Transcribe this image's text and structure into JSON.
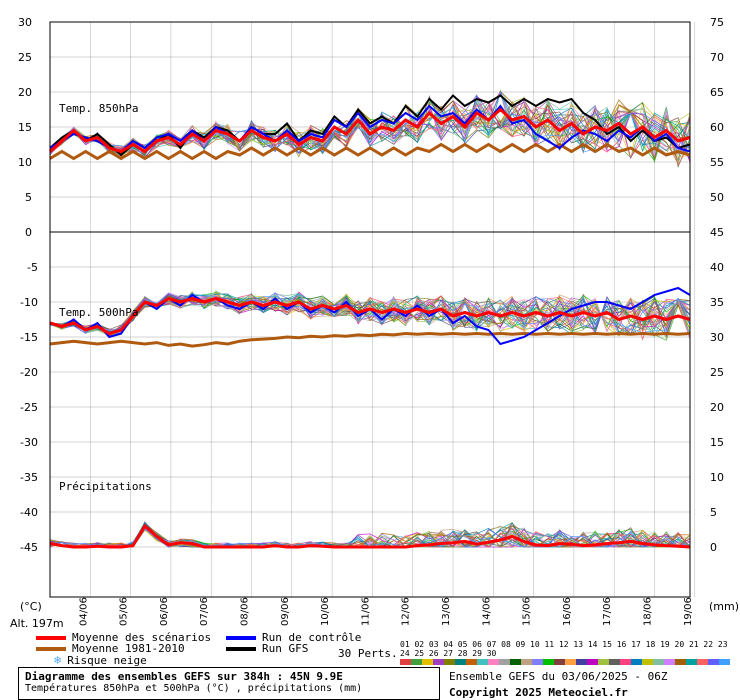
{
  "chart_data": {
    "type": "line",
    "left_axis_unit": "(°C)",
    "right_axis_unit": "(mm)",
    "altitude": "Alt. 197m",
    "left_ticks_top": [
      "30",
      "25",
      "20",
      "15",
      "10",
      "5",
      "0"
    ],
    "left_ticks_bottom": [
      "-5",
      "-10",
      "-15",
      "-20",
      "-25",
      "-30",
      "-35",
      "-40",
      "-45"
    ],
    "right_ticks": [
      "75",
      "70",
      "65",
      "60",
      "55",
      "50",
      "45",
      "40",
      "35",
      "30",
      "25",
      "20",
      "15",
      "10",
      "5",
      "0"
    ],
    "x_labels": [
      "04/06",
      "05/06",
      "06/06",
      "07/06",
      "08/06",
      "09/06",
      "10/06",
      "11/06",
      "12/06",
      "13/06",
      "14/06",
      "15/06",
      "16/06",
      "17/06",
      "18/06",
      "19/06"
    ],
    "panels": [
      {
        "title": "Temp. 850hPa"
      },
      {
        "title": "Temp. 500hPa"
      },
      {
        "title": "Précipitations"
      }
    ],
    "series_850": {
      "moyenne_scenarios": [
        11.5,
        13,
        14.5,
        13,
        13.5,
        12,
        11.5,
        12.5,
        11.5,
        13,
        13.5,
        12.5,
        14,
        13,
        14.5,
        14,
        13,
        14.5,
        13.5,
        13,
        14,
        12.5,
        13.5,
        13,
        15,
        14,
        16,
        14,
        15,
        14.5,
        16,
        15,
        17,
        15.5,
        16.5,
        15,
        17,
        16,
        17.5,
        16,
        16.5,
        15,
        16,
        14.5,
        15.5,
        14,
        15,
        14.5,
        15.5,
        14,
        15,
        13.5,
        14.5,
        13,
        13.5
      ],
      "moyenne_1981_2010": [
        10.5,
        11.5,
        10.5,
        11.5,
        10.5,
        11.5,
        10.5,
        11.5,
        10.5,
        11.5,
        10.5,
        11.5,
        10.5,
        11.5,
        10.5,
        11.5,
        11,
        12,
        11,
        12,
        11,
        12,
        11,
        12,
        11,
        12,
        11,
        12,
        11,
        12,
        11,
        12,
        11.5,
        12.5,
        11.5,
        12.5,
        11.5,
        12.5,
        11.5,
        12.5,
        11.5,
        12.5,
        11.5,
        12.5,
        11.5,
        12.5,
        11.5,
        12.5,
        11.5,
        12,
        11,
        12,
        11,
        11.5,
        11
      ],
      "run_controle": [
        12,
        13,
        14,
        13.5,
        13,
        12,
        11.5,
        13,
        12,
        13.5,
        14,
        13,
        14.5,
        13,
        15,
        14,
        13,
        15,
        14,
        13,
        14.5,
        13,
        14,
        13.5,
        16,
        15,
        17,
        15,
        16,
        15.5,
        17,
        16,
        18,
        16.5,
        17,
        15.5,
        17.5,
        16,
        18,
        15.5,
        16,
        14,
        13,
        12,
        13.5,
        14.5,
        14,
        13,
        14.5,
        13.5,
        15,
        13,
        14,
        12,
        11.5
      ],
      "run_gfs": [
        12,
        13.5,
        14.5,
        13,
        14,
        12.5,
        11,
        12.5,
        11.5,
        13,
        14,
        12,
        14.5,
        13.5,
        15,
        14.5,
        13,
        15,
        14,
        14,
        15.5,
        13,
        14.5,
        14,
        16.5,
        15,
        17.5,
        15.5,
        16.5,
        15.5,
        18,
        16.5,
        19,
        17.5,
        19.5,
        18,
        19,
        18.5,
        19.5,
        18,
        19,
        18,
        19,
        18.5,
        19,
        17,
        16,
        14,
        15,
        13,
        14.5,
        13,
        13.5,
        12,
        12.5
      ]
    },
    "series_500": {
      "moyenne_scenarios": [
        -13,
        -13.5,
        -13,
        -14,
        -13.5,
        -14.5,
        -14,
        -12,
        -10,
        -10.5,
        -9.5,
        -10,
        -9.5,
        -10,
        -9.5,
        -10,
        -10.5,
        -10,
        -10.5,
        -10,
        -10.5,
        -10,
        -11,
        -10.5,
        -11,
        -10.5,
        -11.5,
        -11,
        -11.5,
        -11,
        -11.5,
        -11,
        -11.5,
        -11,
        -12,
        -11.5,
        -12,
        -11.5,
        -12,
        -11.5,
        -12,
        -11.5,
        -12,
        -11.5,
        -12,
        -11.5,
        -12,
        -11.5,
        -12.5,
        -12,
        -12.5,
        -12,
        -12.5,
        -12,
        -12.5
      ],
      "moyenne_1981_2010": [
        -16,
        -15.8,
        -15.6,
        -15.8,
        -16,
        -15.8,
        -15.6,
        -15.8,
        -16,
        -15.8,
        -16.2,
        -16,
        -16.3,
        -16.1,
        -15.8,
        -16,
        -15.6,
        -15.4,
        -15.3,
        -15.2,
        -15,
        -15.1,
        -14.9,
        -15,
        -14.8,
        -14.9,
        -14.7,
        -14.8,
        -14.6,
        -14.7,
        -14.5,
        -14.6,
        -14.5,
        -14.6,
        -14.5,
        -14.6,
        -14.5,
        -14.6,
        -14.5,
        -14.6,
        -14.5,
        -14.6,
        -14.5,
        -14.6,
        -14.5,
        -14.6,
        -14.5,
        -14.6,
        -14.5,
        -14.6,
        -14.5,
        -14.6,
        -14.5,
        -14.6,
        -14.5
      ],
      "run_controle": [
        -13,
        -13.5,
        -12.5,
        -14,
        -13,
        -15,
        -14.5,
        -12,
        -10,
        -11,
        -9.5,
        -10.5,
        -9,
        -10,
        -9.5,
        -10.5,
        -11,
        -10,
        -11,
        -9.5,
        -11,
        -10,
        -11.5,
        -10.5,
        -11.5,
        -10,
        -12,
        -11,
        -12.5,
        -11,
        -12,
        -10.5,
        -12,
        -11,
        -13,
        -12,
        -13.5,
        -14,
        -16,
        -15.5,
        -15,
        -14,
        -13,
        -12,
        -11,
        -10.5,
        -10,
        -10,
        -10.5,
        -11,
        -10,
        -9,
        -8.5,
        -8,
        -9
      ]
    },
    "series_precip_mm": {
      "moyenne_scenarios": [
        0.5,
        0.2,
        0,
        0,
        0.1,
        0,
        0,
        0.2,
        3,
        1.5,
        0.3,
        0.6,
        0.5,
        0,
        0,
        0,
        0,
        0,
        0,
        0.2,
        0,
        0,
        0.2,
        0.1,
        0,
        0,
        0,
        0,
        0,
        0,
        0,
        0.2,
        0.3,
        0.5,
        0.6,
        0.8,
        0.4,
        0.7,
        1,
        1.5,
        0.8,
        0.3,
        0.2,
        0.5,
        0.4,
        0.2,
        0.3,
        0.5,
        0.6,
        0.8,
        0.5,
        0.3,
        0.2,
        0.1,
        0
      ]
    },
    "legend": {
      "moyenne_scenarios": "Moyenne des scénarios",
      "moyenne_1981_2010": "Moyenne 1981-2010",
      "risque_neige": "Risque neige",
      "run_controle": "Run de contrôle",
      "run_gfs": "Run GFS",
      "perts_label": "30 Perts.",
      "perts_numbers": "01 02 03 04 05 06 07 08 09 10 11 12 13 14 15 16 17 18 19 20 21 22 23 24 25 26 27 28 29 30"
    },
    "colors": {
      "moyenne_scenarios": "#ff0000",
      "moyenne_1981_2010": "#b05a10",
      "run_controle": "#0000ff",
      "run_gfs": "#000000",
      "snow_icon": "#55aaff",
      "pert_palette": [
        "#e04040",
        "#40a040",
        "#e0c000",
        "#a040c0",
        "#808000",
        "#008080",
        "#c06000",
        "#40c0c0",
        "#ff80c0",
        "#a0a0a0",
        "#006000",
        "#c0a080",
        "#8080ff",
        "#00c000",
        "#804040",
        "#ffa040",
        "#4040a0",
        "#c000c0",
        "#a0c040",
        "#606060",
        "#ff4080",
        "#0080c0",
        "#c0c000",
        "#80c0a0",
        "#d080ff",
        "#a06000",
        "#00a0a0",
        "#ff6060",
        "#6060ff",
        "#40a0ff"
      ]
    },
    "footer": {
      "title_line1": "Diagramme des ensembles GEFS sur 384h : 45N 9.9E",
      "title_line2": "Températures 850hPa et 500hPa (°C) , précipitations (mm)",
      "ensemble_info": "Ensemble GEFS du 03/06/2025 - 06Z",
      "copyright": "Copyright 2025 Meteociel.fr"
    }
  }
}
